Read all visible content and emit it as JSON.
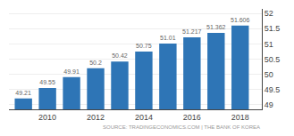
{
  "chart_data": {
    "type": "bar",
    "x": [
      2009,
      2010,
      2011,
      2012,
      2013,
      2014,
      2015,
      2016,
      2017,
      2018
    ],
    "values": [
      49.21,
      49.55,
      49.91,
      50.2,
      50.42,
      50.75,
      51.01,
      51.217,
      51.362,
      51.606
    ],
    "color": "#2e75b6",
    "xlim": [
      2008.4,
      2018.9
    ],
    "xticks": [
      2010,
      2012,
      2014,
      2016,
      2018
    ],
    "ylim": [
      48.85,
      52.15
    ],
    "yticks": [
      49,
      49.5,
      50,
      50.5,
      51,
      51.5,
      52
    ],
    "grid": true,
    "data_labels": true,
    "annotations": [
      "SOURCE: TRADINGECONOMICS.COM | THE BANK OF KOREA"
    ]
  }
}
